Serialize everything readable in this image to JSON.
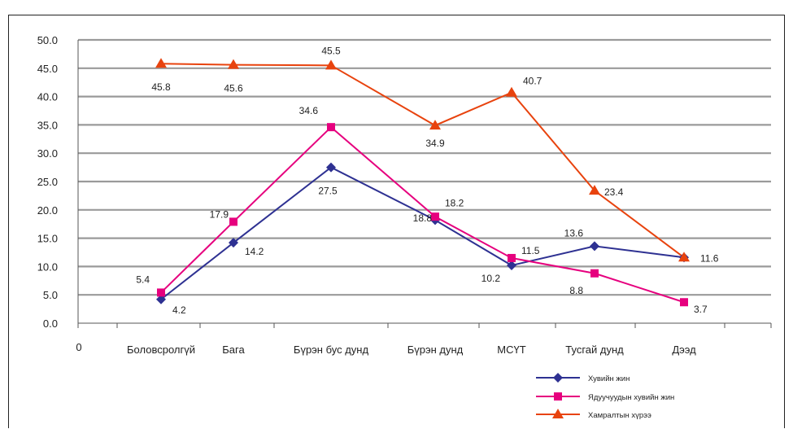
{
  "chart_data": {
    "type": "line",
    "categories": [
      "Боловсролгүй",
      "Бага",
      "Бүрэн бус дунд",
      "Бүрэн дунд",
      "МСҮТ",
      "Тусгай дунд",
      "Дээд"
    ],
    "origin_label": "0",
    "ylim": [
      0,
      50
    ],
    "yticks": [
      "0.0",
      "5.0",
      "10.0",
      "15.0",
      "20.0",
      "25.0",
      "30.0",
      "35.0",
      "40.0",
      "45.0",
      "50.0"
    ],
    "grid": true,
    "legend_position": "bottom-right",
    "series": [
      {
        "name": "Хувийн жин",
        "color": "#2e3192",
        "marker": "diamond",
        "values": [
          4.2,
          14.2,
          27.5,
          18.2,
          10.2,
          13.6,
          11.6
        ],
        "labels": [
          "4.2",
          "14.2",
          "27.5",
          "18.2",
          "10.2",
          "13.6",
          "11.6"
        ]
      },
      {
        "name": "Ядуучуудын хувийн жин",
        "color": "#e6007e",
        "marker": "square",
        "values": [
          5.4,
          17.9,
          34.6,
          18.8,
          11.5,
          8.8,
          3.7
        ],
        "labels": [
          "5.4",
          "17.9",
          "34.6",
          "18.8",
          "11.5",
          "8.8",
          "3.7"
        ]
      },
      {
        "name": "Хамралтын хүрээ",
        "color": "#e8430e",
        "marker": "triangle",
        "values": [
          45.8,
          45.6,
          45.5,
          34.9,
          40.7,
          23.4,
          11.6
        ],
        "labels": [
          "45.8",
          "45.6",
          "45.5",
          "34.9",
          "40.7",
          "23.4",
          ""
        ]
      }
    ]
  }
}
